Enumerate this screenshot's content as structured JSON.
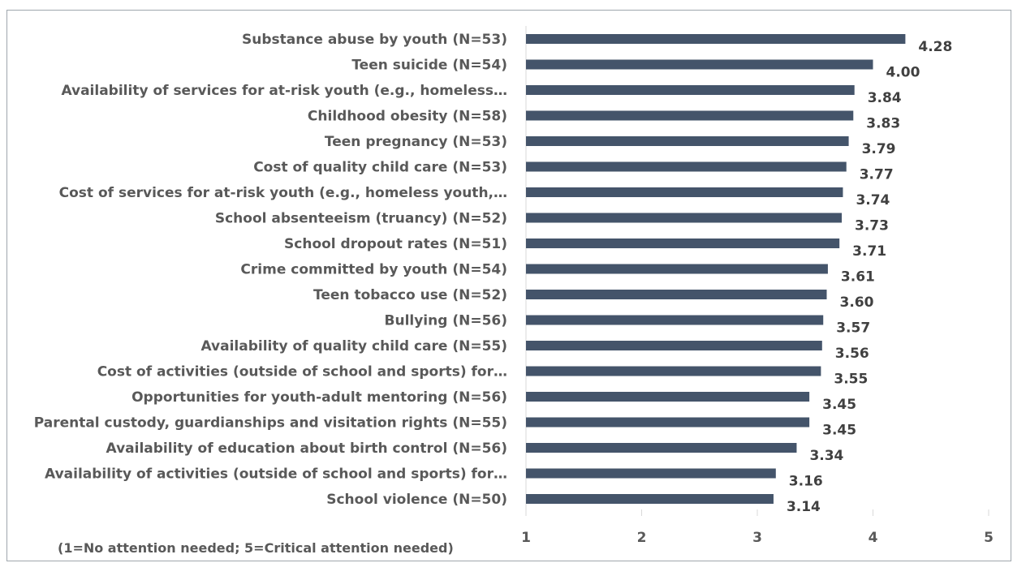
{
  "chart_data": {
    "type": "bar",
    "orientation": "horizontal",
    "categories": [
      "Substance abuse by youth (N=53)",
      "Teen suicide (N=54)",
      "Availability of services for at-risk youth (e.g., homeless…",
      "Childhood obesity (N=58)",
      "Teen pregnancy (N=53)",
      "Cost of quality child care (N=53)",
      "Cost of services for at-risk youth (e.g., homeless youth,…",
      "School absenteeism (truancy) (N=52)",
      "School dropout rates (N=51)",
      "Crime committed by youth (N=54)",
      "Teen tobacco use (N=52)",
      "Bullying (N=56)",
      "Availability of quality child care (N=55)",
      "Cost of activities (outside of school and sports) for…",
      "Opportunities for youth-adult mentoring (N=56)",
      "Parental custody, guardianships and visitation rights (N=55)",
      "Availability of education about birth control (N=56)",
      "Availability of activities (outside of school and sports) for…",
      "School violence (N=50)"
    ],
    "values": [
      4.28,
      4.0,
      3.84,
      3.83,
      3.79,
      3.77,
      3.74,
      3.73,
      3.71,
      3.61,
      3.6,
      3.57,
      3.56,
      3.55,
      3.45,
      3.45,
      3.34,
      3.16,
      3.14
    ],
    "value_labels": [
      "4.28",
      "4.00",
      "3.84",
      "3.83",
      "3.79",
      "3.77",
      "3.74",
      "3.73",
      "3.71",
      "3.61",
      "3.60",
      "3.57",
      "3.56",
      "3.55",
      "3.45",
      "3.45",
      "3.34",
      "3.16",
      "3.14"
    ],
    "xlim": [
      1,
      5
    ],
    "xticks": [
      "1",
      "2",
      "3",
      "4",
      "5"
    ],
    "grid": false,
    "bar_color": "#44546a",
    "note": "(1=No attention needed; 5=Critical attention needed)"
  }
}
